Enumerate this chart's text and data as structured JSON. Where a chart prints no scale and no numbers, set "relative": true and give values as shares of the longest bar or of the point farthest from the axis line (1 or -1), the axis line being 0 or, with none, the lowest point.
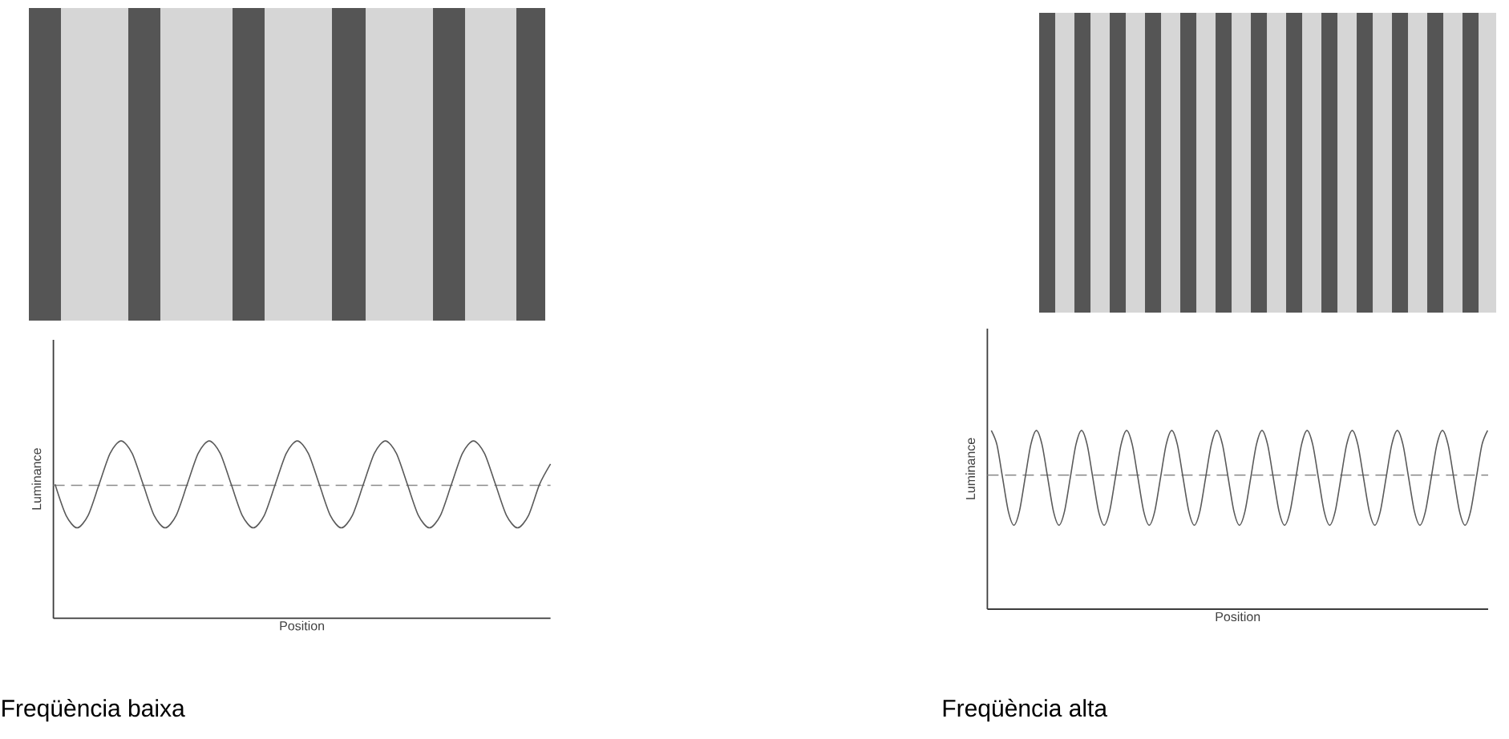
{
  "chart_data": [
    {
      "type": "line",
      "title": "Freqüència baixa",
      "xlabel": "Position",
      "ylabel": "Luminance",
      "relative": true,
      "color": "#5a5a5a",
      "categories": [
        null,
        null,
        null,
        null,
        null,
        null,
        null,
        null,
        null,
        null,
        null,
        null,
        null,
        null,
        null,
        null,
        null,
        null,
        null,
        null,
        null,
        null,
        null,
        null,
        null,
        null,
        null,
        null,
        null,
        null,
        null,
        null,
        null,
        null,
        null,
        null,
        null,
        null,
        null,
        null,
        null,
        null,
        null,
        null,
        null,
        null
      ],
      "values": [
        0.755,
        0.58,
        0.51,
        0.58,
        0.755,
        0.93,
        1,
        0.93,
        0.755,
        0.58,
        0.51,
        0.58,
        0.755,
        0.93,
        1,
        0.93,
        0.755,
        0.58,
        0.51,
        0.58,
        0.755,
        0.93,
        1,
        0.93,
        0.755,
        0.58,
        0.51,
        0.58,
        0.755,
        0.93,
        1,
        0.93,
        0.755,
        0.58,
        0.51,
        0.58,
        0.755,
        0.93,
        1,
        0.93,
        0.755,
        0.58,
        0.51,
        0.58,
        0.755,
        0.87
      ],
      "ref_lines": [
        {
          "axis": "y",
          "value": 0.75,
          "line_style": "dashed",
          "color": "#8a8a8a"
        }
      ]
    },
    {
      "type": "line",
      "title": "Freqüència alta",
      "xlabel": "Position",
      "ylabel": "Luminance",
      "relative": true,
      "color": "#5a5a5a",
      "categories": [
        null,
        null,
        null,
        null,
        null,
        null,
        null,
        null,
        null,
        null,
        null,
        null,
        null,
        null,
        null,
        null,
        null,
        null,
        null,
        null,
        null,
        null,
        null,
        null,
        null,
        null,
        null,
        null,
        null,
        null,
        null,
        null,
        null,
        null,
        null,
        null,
        null,
        null,
        null,
        null,
        null,
        null,
        null,
        null,
        null,
        null,
        null,
        null,
        null,
        null,
        null,
        null,
        null,
        null,
        null,
        null,
        null,
        null,
        null,
        null,
        null,
        null,
        null,
        null,
        null,
        null,
        null,
        null,
        null,
        null,
        null,
        null,
        null,
        null,
        null,
        null,
        null,
        null,
        null,
        null,
        null,
        null,
        null,
        null,
        null,
        null,
        null,
        null,
        null
      ],
      "values": [
        1,
        0.92,
        0.735,
        0.55,
        0.47,
        0.55,
        0.735,
        0.92,
        1,
        0.92,
        0.735,
        0.55,
        0.47,
        0.55,
        0.735,
        0.92,
        1,
        0.92,
        0.735,
        0.55,
        0.47,
        0.55,
        0.735,
        0.92,
        1,
        0.92,
        0.735,
        0.55,
        0.47,
        0.55,
        0.735,
        0.92,
        1,
        0.92,
        0.735,
        0.55,
        0.47,
        0.55,
        0.735,
        0.92,
        1,
        0.92,
        0.735,
        0.55,
        0.47,
        0.55,
        0.735,
        0.92,
        1,
        0.92,
        0.735,
        0.55,
        0.47,
        0.55,
        0.735,
        0.92,
        1,
        0.92,
        0.735,
        0.55,
        0.47,
        0.55,
        0.735,
        0.92,
        1,
        0.92,
        0.735,
        0.55,
        0.47,
        0.55,
        0.735,
        0.92,
        1,
        0.92,
        0.735,
        0.55,
        0.47,
        0.55,
        0.735,
        0.92,
        1,
        0.92,
        0.735,
        0.55,
        0.47,
        0.55,
        0.735,
        0.92,
        1
      ],
      "ref_lines": [
        {
          "axis": "y",
          "value": 0.75,
          "line_style": "dashed",
          "color": "#8a8a8a"
        }
      ]
    }
  ]
}
